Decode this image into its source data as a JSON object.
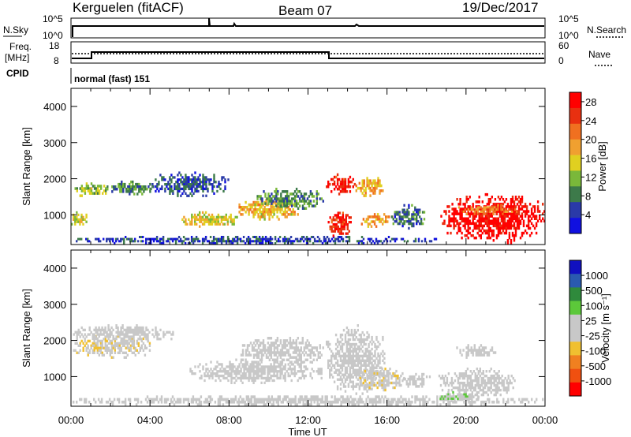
{
  "header": {
    "station": "Kerguelen (fitACF)",
    "beam": "Beam 07",
    "date": "19/Dec/2017"
  },
  "noise_panel": {
    "left_label": "N.Sky",
    "left_ticks": [
      "10^5",
      "10^0"
    ],
    "right_label": "N.Search",
    "right_ticks": [
      "10^5",
      "10^0"
    ]
  },
  "freq_panel": {
    "left_label_1": "Freq.",
    "left_label_2": "[MHz]",
    "left_ticks": [
      "18",
      "8"
    ],
    "right_label": "Nave",
    "right_ticks": [
      "60",
      "0"
    ]
  },
  "cpid": {
    "label": "CPID",
    "value": "normal (fast) 151"
  },
  "colors": {
    "power": [
      "#1010e0",
      "#2a3aa8",
      "#3d7a4a",
      "#7ab83a",
      "#e0d020",
      "#f0a030",
      "#f07020",
      "#e83010",
      "#ff0000"
    ],
    "velocity": [
      "#1010c0",
      "#2a5ab0",
      "#2f8a3c",
      "#5cc83a",
      "#c8c8c8",
      "#c8c8c8",
      "#f0c030",
      "#f08020",
      "#f05010",
      "#ff0000"
    ]
  },
  "chart_data": [
    {
      "type": "heatmap",
      "title": "Power",
      "ylabel": "Slant Range [km]",
      "xlabel": "",
      "xlim": [
        "00:00",
        "24:00"
      ],
      "ylim": [
        180,
        4500
      ],
      "yticks": [
        "1000",
        "2000",
        "3000",
        "4000"
      ],
      "xticks": [],
      "colorbar": {
        "label": "Power [dB]",
        "ticks": [
          "4",
          "8",
          "12",
          "16",
          "20",
          "24",
          "28"
        ],
        "range": [
          0,
          30
        ]
      },
      "regions": [
        {
          "t0": 0.0,
          "t1": 18.6,
          "r0": 190,
          "r1": 420,
          "value": 5
        },
        {
          "t0": 0.1,
          "t1": 1.8,
          "r0": 1500,
          "r1": 1900,
          "value": 13
        },
        {
          "t0": 0.0,
          "t1": 0.9,
          "r0": 650,
          "r1": 1100,
          "value": 14
        },
        {
          "t0": 1.8,
          "t1": 4.2,
          "r0": 1550,
          "r1": 1950,
          "value": 9
        },
        {
          "t0": 4.0,
          "t1": 8.0,
          "r0": 1500,
          "r1": 2200,
          "value": 6
        },
        {
          "t0": 5.6,
          "t1": 8.6,
          "r0": 650,
          "r1": 1100,
          "value": 15
        },
        {
          "t0": 8.4,
          "t1": 11.6,
          "r0": 850,
          "r1": 1450,
          "value": 17
        },
        {
          "t0": 9.4,
          "t1": 12.8,
          "r0": 1150,
          "r1": 1750,
          "value": 9
        },
        {
          "t0": 12.9,
          "t1": 14.4,
          "r0": 1550,
          "r1": 2150,
          "value": 27
        },
        {
          "t0": 13.0,
          "t1": 14.2,
          "r0": 330,
          "r1": 1150,
          "value": 26
        },
        {
          "t0": 14.4,
          "t1": 15.9,
          "r0": 1500,
          "r1": 2050,
          "value": 18
        },
        {
          "t0": 14.6,
          "t1": 16.3,
          "r0": 650,
          "r1": 1050,
          "value": 19
        },
        {
          "t0": 16.2,
          "t1": 18.0,
          "r0": 600,
          "r1": 1300,
          "value": 7
        },
        {
          "t0": 18.7,
          "t1": 24.0,
          "r0": 200,
          "r1": 1600,
          "value": 29
        },
        {
          "t0": 19.6,
          "t1": 22.6,
          "r0": 1000,
          "r1": 1300,
          "value": 21
        }
      ]
    },
    {
      "type": "heatmap",
      "title": "Velocity",
      "ylabel": "Slant Range [km]",
      "xlabel": "Time UT",
      "xlim": [
        "00:00",
        "24:00"
      ],
      "ylim": [
        180,
        4500
      ],
      "yticks": [
        "1000",
        "2000",
        "3000",
        "4000"
      ],
      "xticks": [
        "00:00",
        "04:00",
        "08:00",
        "12:00",
        "16:00",
        "20:00",
        "00:00"
      ],
      "colorbar": {
        "label": "Velocity [m s⁻¹]",
        "ticks": [
          "1000",
          "500",
          "100",
          "25",
          "-25",
          "-100",
          "-500",
          "-1000"
        ],
        "range": [
          -1200,
          1200
        ]
      },
      "regions": [
        {
          "t0": 0.0,
          "t1": 24.0,
          "r0": 190,
          "r1": 480,
          "value": 0
        },
        {
          "t0": 0.1,
          "t1": 4.1,
          "r0": 1500,
          "r1": 2150,
          "value": -200
        },
        {
          "t0": 0.1,
          "t1": 5.2,
          "r0": 1950,
          "r1": 2450,
          "value": 0
        },
        {
          "t0": 6.0,
          "t1": 12.8,
          "r0": 800,
          "r1": 1500,
          "value": 0
        },
        {
          "t0": 8.5,
          "t1": 12.8,
          "r0": 1300,
          "r1": 2100,
          "value": 0
        },
        {
          "t0": 12.9,
          "t1": 15.9,
          "r0": 500,
          "r1": 2450,
          "value": 0
        },
        {
          "t0": 14.6,
          "t1": 16.9,
          "r0": 600,
          "r1": 1250,
          "value": -200
        },
        {
          "t0": 16.8,
          "t1": 18.2,
          "r0": 700,
          "r1": 1100,
          "value": 0
        },
        {
          "t0": 18.6,
          "t1": 22.5,
          "r0": 400,
          "r1": 1250,
          "value": 0
        },
        {
          "t0": 19.5,
          "t1": 21.6,
          "r0": 1500,
          "r1": 1900,
          "value": 60
        },
        {
          "t0": 18.5,
          "t1": 20.5,
          "r0": 300,
          "r1": 600,
          "value": 200
        }
      ]
    }
  ]
}
